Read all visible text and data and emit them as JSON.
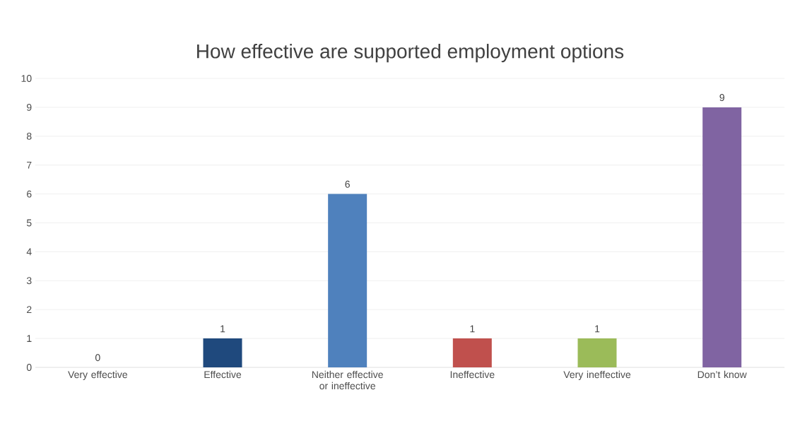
{
  "chart_data": {
    "type": "bar",
    "title": "How effective are supported employment options",
    "categories": [
      "Very effective",
      "Effective",
      "Neither effective or ineffective",
      "Ineffective",
      "Very ineffective",
      "Don’t know"
    ],
    "values": [
      0,
      1,
      6,
      1,
      1,
      9
    ],
    "colors": [
      "#4bacc6",
      "#1f497d",
      "#4f81bd",
      "#c0504d",
      "#9bbb59",
      "#8064a2"
    ],
    "ylim": [
      0,
      10
    ],
    "yticks": [
      0,
      1,
      2,
      3,
      4,
      5,
      6,
      7,
      8,
      9,
      10
    ],
    "grid": "y",
    "data_labels": true
  }
}
